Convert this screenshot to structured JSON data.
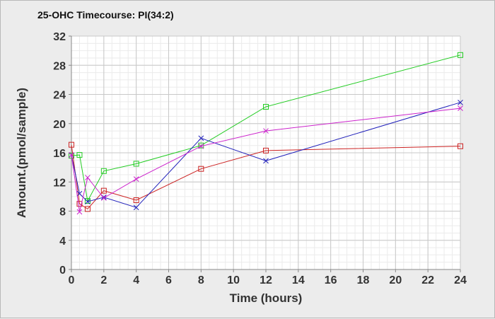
{
  "chart_data": {
    "type": "line",
    "title": "25-OHC Timecourse: PI(34:2)",
    "xlabel": "Time (hours)",
    "ylabel": "Amount.(pmol/sample)",
    "xlim": [
      0,
      24
    ],
    "ylim": [
      0,
      32
    ],
    "xticks": [
      0,
      2,
      4,
      6,
      8,
      10,
      12,
      14,
      16,
      18,
      20,
      22,
      24
    ],
    "yticks": [
      0,
      4,
      8,
      12,
      16,
      20,
      24,
      28,
      32
    ],
    "grid": true,
    "series": [
      {
        "color": "#22cc22",
        "marker": "square",
        "x": [
          0,
          0.5,
          1,
          2,
          4,
          8,
          12,
          24
        ],
        "y": [
          15.6,
          15.7,
          9.4,
          13.5,
          14.5,
          17.0,
          22.3,
          29.4
        ]
      },
      {
        "color": "#cc2222",
        "marker": "square",
        "x": [
          0,
          0.5,
          1,
          2,
          4,
          8,
          12,
          24
        ],
        "y": [
          17.1,
          9.0,
          8.3,
          10.8,
          9.5,
          13.8,
          16.3,
          16.9
        ]
      },
      {
        "color": "#2222bb",
        "marker": "x",
        "x": [
          0,
          0.5,
          1,
          2,
          4,
          8,
          12,
          24
        ],
        "y": [
          15.7,
          10.4,
          9.3,
          9.9,
          8.5,
          18.0,
          14.9,
          22.9
        ]
      },
      {
        "color": "#cc22cc",
        "marker": "x",
        "x": [
          0,
          0.5,
          1,
          2,
          4,
          8,
          12,
          24
        ],
        "y": [
          15.7,
          7.9,
          12.6,
          9.8,
          12.4,
          16.9,
          19.0,
          22.1
        ]
      }
    ]
  }
}
